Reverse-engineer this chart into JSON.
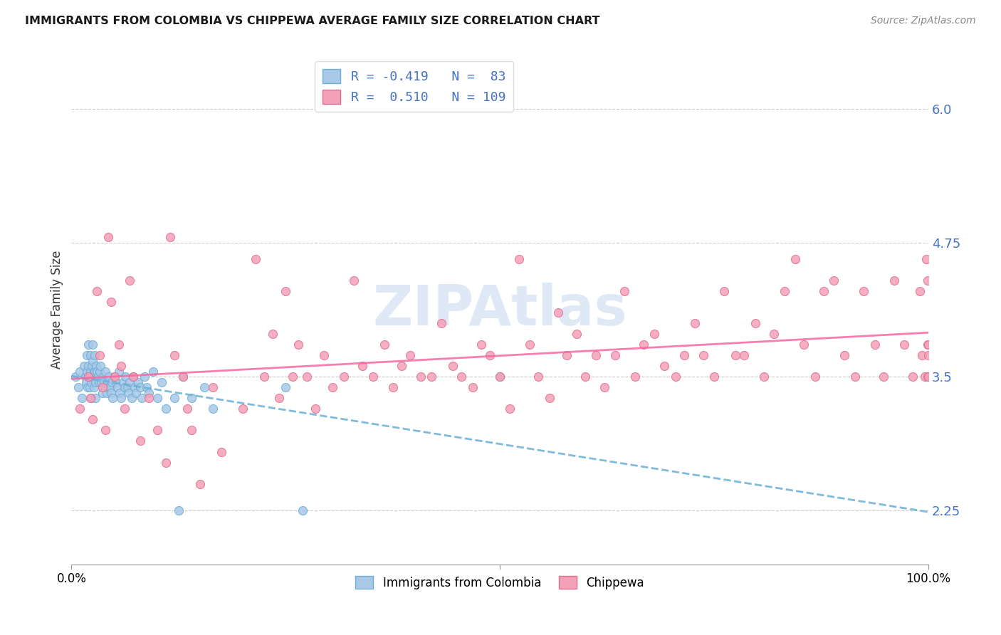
{
  "title": "IMMIGRANTS FROM COLOMBIA VS CHIPPEWA AVERAGE FAMILY SIZE CORRELATION CHART",
  "source": "Source: ZipAtlas.com",
  "ylabel": "Average Family Size",
  "yticks": [
    2.25,
    3.5,
    4.75,
    6.0
  ],
  "xlim": [
    0.0,
    1.0
  ],
  "ylim": [
    1.75,
    6.5
  ],
  "colombia_color": "#a8c8e8",
  "colombia_edge_color": "#6baed6",
  "chippewa_color": "#f4a0b8",
  "chippewa_edge_color": "#e07090",
  "colombia_line_color": "#6baed6",
  "chippewa_line_color": "#f768a1",
  "watermark": "ZIPAtlas",
  "grid_color": "#cccccc",
  "colombia_x": [
    0.005,
    0.008,
    0.01,
    0.012,
    0.015,
    0.016,
    0.017,
    0.018,
    0.018,
    0.019,
    0.02,
    0.02,
    0.021,
    0.021,
    0.022,
    0.022,
    0.023,
    0.023,
    0.024,
    0.024,
    0.025,
    0.025,
    0.026,
    0.026,
    0.027,
    0.027,
    0.028,
    0.028,
    0.029,
    0.03,
    0.031,
    0.032,
    0.033,
    0.034,
    0.035,
    0.036,
    0.037,
    0.038,
    0.039,
    0.04,
    0.041,
    0.042,
    0.043,
    0.044,
    0.045,
    0.046,
    0.047,
    0.048,
    0.05,
    0.052,
    0.054,
    0.055,
    0.056,
    0.058,
    0.06,
    0.062,
    0.063,
    0.065,
    0.067,
    0.068,
    0.07,
    0.072,
    0.074,
    0.075,
    0.078,
    0.08,
    0.082,
    0.085,
    0.088,
    0.09,
    0.095,
    0.1,
    0.105,
    0.11,
    0.12,
    0.125,
    0.13,
    0.14,
    0.155,
    0.165,
    0.25,
    0.27,
    0.5
  ],
  "colombia_y": [
    3.5,
    3.4,
    3.55,
    3.3,
    3.6,
    3.5,
    3.45,
    3.7,
    3.55,
    3.4,
    3.8,
    3.6,
    3.5,
    3.4,
    3.7,
    3.55,
    3.45,
    3.3,
    3.6,
    3.5,
    3.8,
    3.65,
    3.55,
    3.4,
    3.7,
    3.55,
    3.45,
    3.3,
    3.6,
    3.55,
    3.5,
    3.45,
    3.55,
    3.6,
    3.45,
    3.35,
    3.5,
    3.45,
    3.4,
    3.55,
    3.35,
    3.45,
    3.4,
    3.5,
    3.4,
    3.35,
    3.45,
    3.3,
    3.5,
    3.45,
    3.4,
    3.55,
    3.35,
    3.3,
    3.45,
    3.4,
    3.5,
    3.4,
    3.35,
    3.45,
    3.3,
    3.5,
    3.4,
    3.35,
    3.45,
    3.4,
    3.3,
    3.5,
    3.4,
    3.35,
    3.55,
    3.3,
    3.45,
    3.2,
    3.3,
    2.25,
    3.5,
    3.3,
    3.4,
    3.2,
    3.4,
    2.25,
    3.5
  ],
  "chippewa_x": [
    0.01,
    0.02,
    0.022,
    0.025,
    0.03,
    0.033,
    0.036,
    0.04,
    0.043,
    0.046,
    0.05,
    0.055,
    0.058,
    0.062,
    0.068,
    0.072,
    0.08,
    0.09,
    0.1,
    0.11,
    0.115,
    0.12,
    0.13,
    0.135,
    0.14,
    0.15,
    0.165,
    0.175,
    0.2,
    0.215,
    0.225,
    0.235,
    0.242,
    0.25,
    0.258,
    0.265,
    0.275,
    0.285,
    0.295,
    0.305,
    0.318,
    0.33,
    0.34,
    0.352,
    0.365,
    0.375,
    0.385,
    0.395,
    0.408,
    0.42,
    0.432,
    0.445,
    0.455,
    0.468,
    0.478,
    0.488,
    0.5,
    0.512,
    0.522,
    0.535,
    0.545,
    0.558,
    0.568,
    0.578,
    0.59,
    0.6,
    0.612,
    0.622,
    0.635,
    0.645,
    0.658,
    0.668,
    0.68,
    0.692,
    0.705,
    0.715,
    0.728,
    0.738,
    0.75,
    0.762,
    0.775,
    0.785,
    0.798,
    0.808,
    0.82,
    0.832,
    0.845,
    0.855,
    0.868,
    0.878,
    0.89,
    0.902,
    0.915,
    0.925,
    0.938,
    0.948,
    0.96,
    0.972,
    0.982,
    0.99,
    0.993,
    0.996,
    0.998,
    0.999,
    0.9995,
    0.9998,
    0.9999,
    0.99995,
    0.99999
  ],
  "chippewa_y": [
    3.2,
    3.5,
    3.3,
    3.1,
    4.3,
    3.7,
    3.4,
    3.0,
    4.8,
    4.2,
    3.5,
    3.8,
    3.6,
    3.2,
    4.4,
    3.5,
    2.9,
    3.3,
    3.0,
    2.7,
    4.8,
    3.7,
    3.5,
    3.2,
    3.0,
    2.5,
    3.4,
    2.8,
    3.2,
    4.6,
    3.5,
    3.9,
    3.3,
    4.3,
    3.5,
    3.8,
    3.5,
    3.2,
    3.7,
    3.4,
    3.5,
    4.4,
    3.6,
    3.5,
    3.8,
    3.4,
    3.6,
    3.7,
    3.5,
    3.5,
    4.0,
    3.6,
    3.5,
    3.4,
    3.8,
    3.7,
    3.5,
    3.2,
    4.6,
    3.8,
    3.5,
    3.3,
    4.1,
    3.7,
    3.9,
    3.5,
    3.7,
    3.4,
    3.7,
    4.3,
    3.5,
    3.8,
    3.9,
    3.6,
    3.5,
    3.7,
    4.0,
    3.7,
    3.5,
    4.3,
    3.7,
    3.7,
    4.0,
    3.5,
    3.9,
    4.3,
    4.6,
    3.8,
    3.5,
    4.3,
    4.4,
    3.7,
    3.5,
    4.3,
    3.8,
    3.5,
    4.4,
    3.8,
    3.5,
    4.3,
    3.7,
    3.5,
    4.6,
    3.8,
    3.5,
    4.4,
    3.7,
    3.5,
    3.8
  ]
}
